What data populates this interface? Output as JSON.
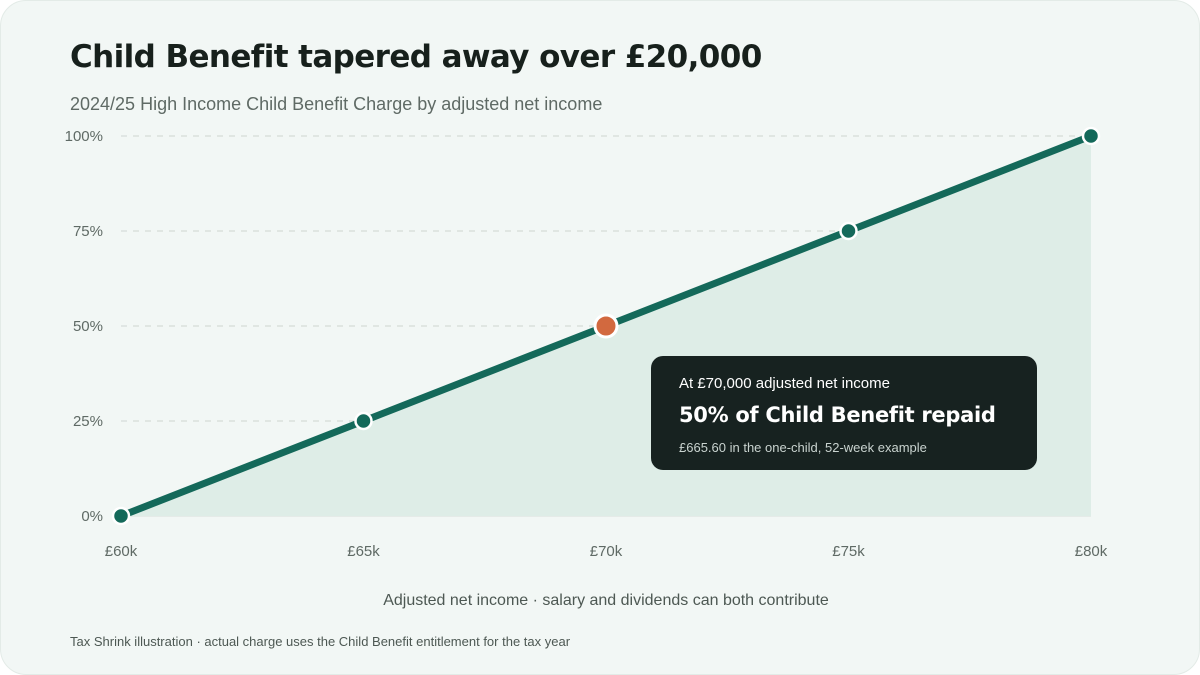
{
  "chart_data": {
    "type": "area",
    "title": "Child Benefit tapered away over £20,000",
    "subtitle": "2024/25 High Income Child Benefit Charge by adjusted net income",
    "xlabel": "Adjusted net income · salary and dividends can both contribute",
    "ylabel": "",
    "x": [
      60,
      65,
      70,
      75,
      80
    ],
    "x_unit": "£k",
    "x_tick_labels": [
      "£60k",
      "£65k",
      "£70k",
      "£75k",
      "£80k"
    ],
    "xlim": [
      60,
      80
    ],
    "y": [
      0,
      25,
      50,
      75,
      100
    ],
    "y_unit": "%",
    "y_tick_values": [
      0,
      25,
      50,
      75,
      100
    ],
    "y_tick_labels": [
      "0%",
      "25%",
      "50%",
      "75%",
      "100%"
    ],
    "ylim": [
      0,
      100
    ],
    "grid": "horizontal dashed",
    "legend": "none",
    "highlight": {
      "x": 70,
      "y": 50,
      "label_line1": "At £70,000 adjusted net income",
      "label_line2": "50% of Child Benefit repaid",
      "label_line3": "£665.60 in the one-child, 52-week example"
    },
    "footnote": "Tax Shrink illustration · actual charge uses the Child Benefit entitlement for the tax year"
  },
  "colors": {
    "line": "#14695a",
    "area_fill": "#deede7",
    "highlight_point": "#d2693f",
    "grid": "#d5dbd8",
    "callout_bg": "#172220"
  }
}
